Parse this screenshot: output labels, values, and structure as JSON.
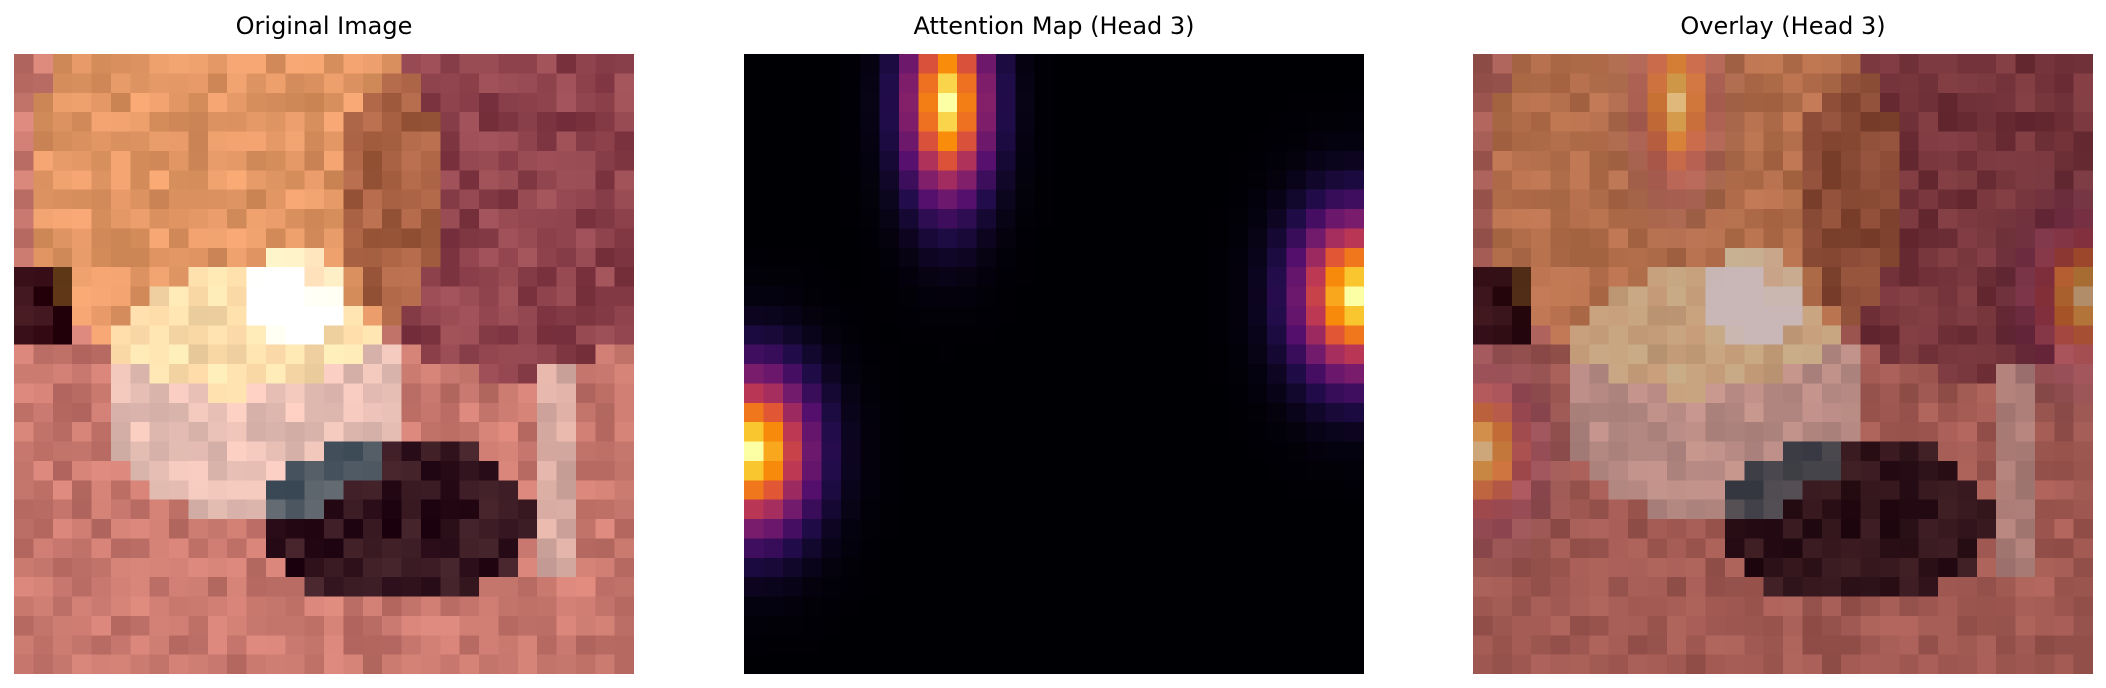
{
  "panels": {
    "original": {
      "title": "Original Image"
    },
    "attention": {
      "title": "Attention Map (Head 3)"
    },
    "overlay": {
      "title": "Overlay (Head 3)"
    }
  },
  "colormap": "inferno",
  "grid_size": 32
}
